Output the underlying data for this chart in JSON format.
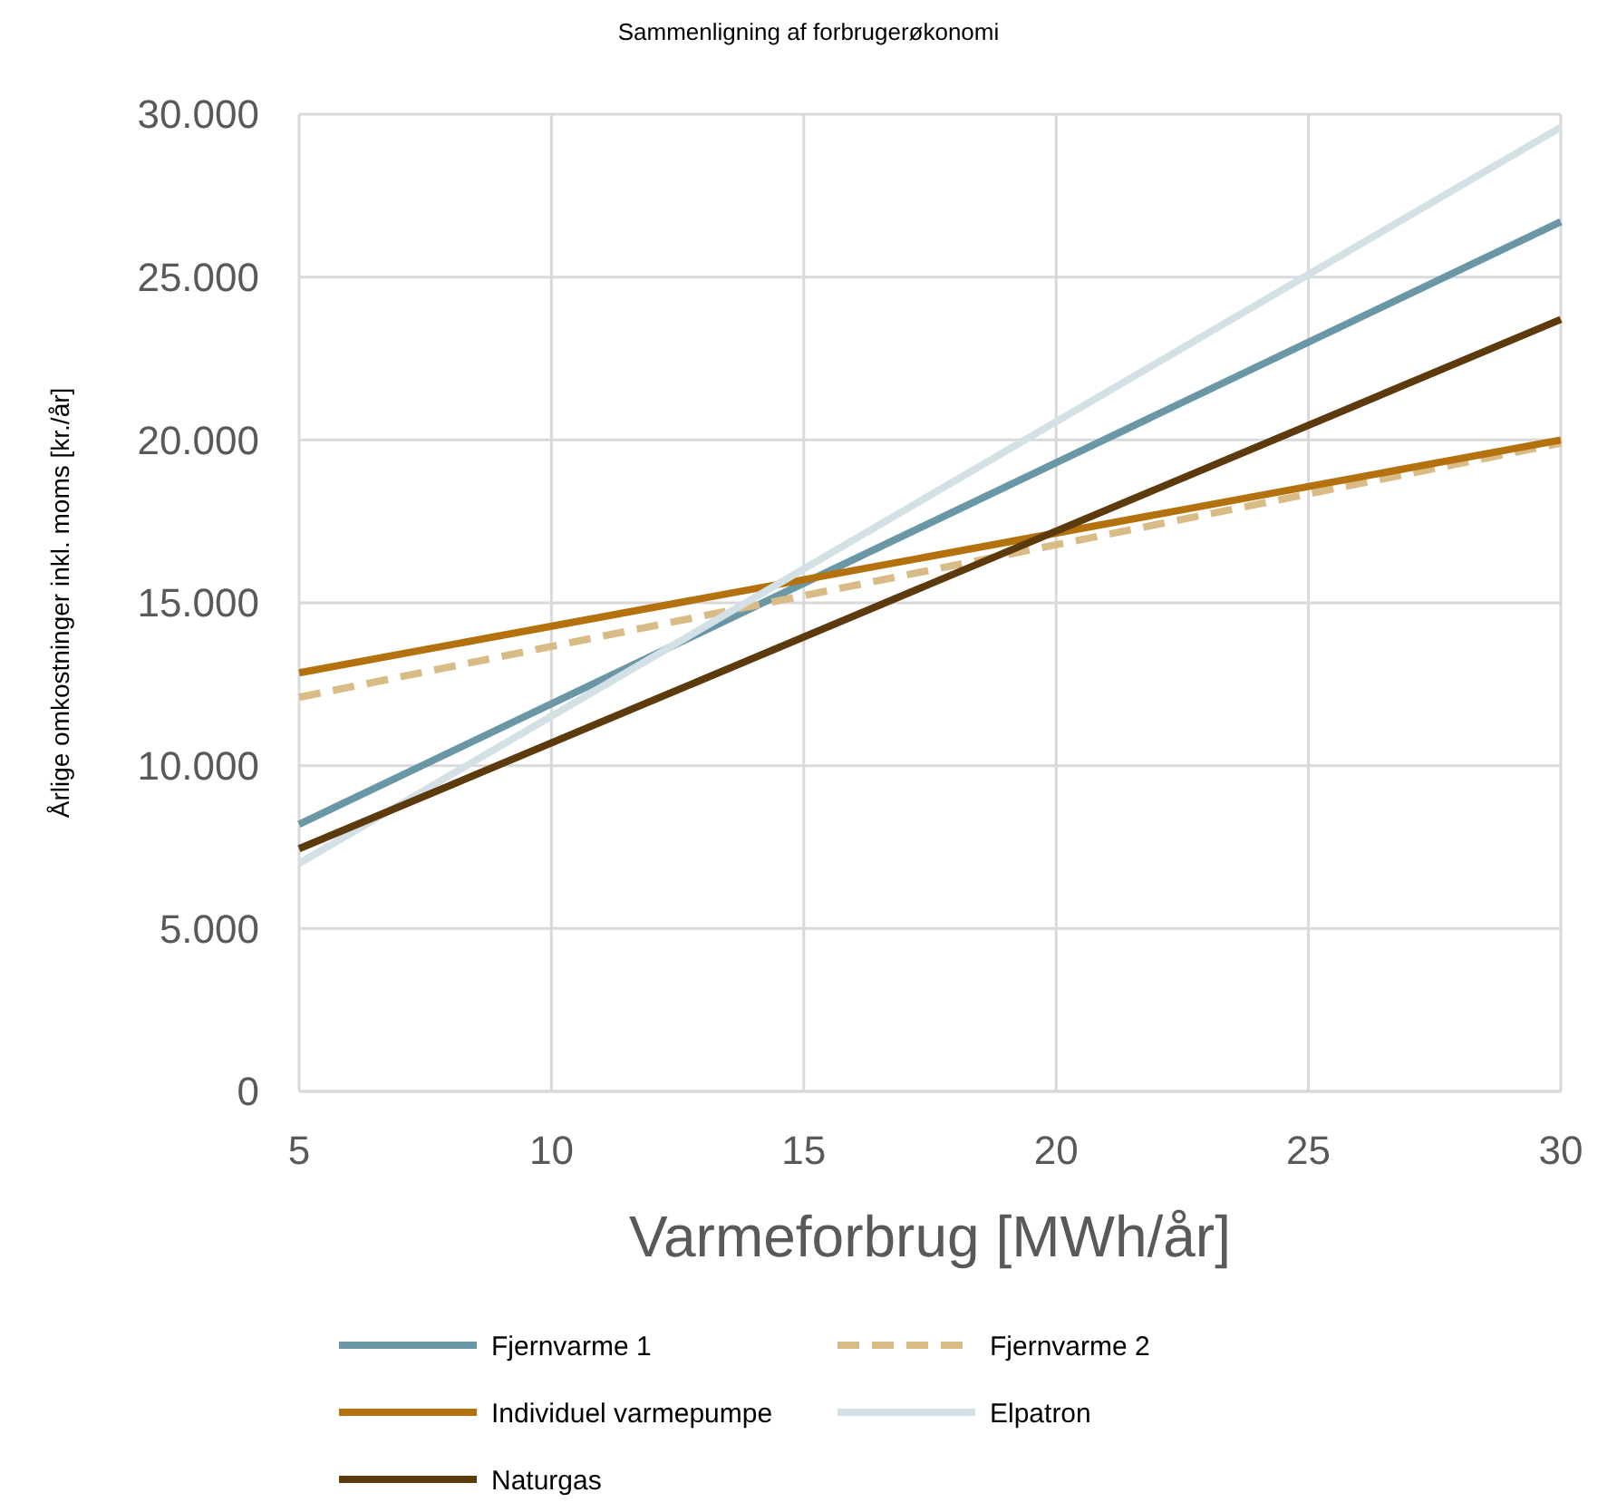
{
  "chart_data": {
    "type": "line",
    "title": "Sammenligning af forbrugerøkonomi",
    "xlabel": "Varmeforbrug [MWh/år]",
    "ylabel": "Årlige omkostninger inkl. moms [kr./år]",
    "x": [
      5,
      30
    ],
    "series": [
      {
        "name": "Fjernvarme 1",
        "color": "#6a97a6",
        "values": [
          8200,
          26700
        ]
      },
      {
        "name": "Fjernvarme 2",
        "color": "#d9bb85",
        "values": [
          12100,
          19900
        ],
        "line_style": "dashed"
      },
      {
        "name": "Individuel varmepumpe",
        "color": "#b3720e",
        "values": [
          12850,
          20000
        ]
      },
      {
        "name": "Elpatron",
        "color": "#d3e0e5",
        "values": [
          7000,
          29600
        ]
      },
      {
        "name": "Naturgas",
        "color": "#5c3a0c",
        "values": [
          7450,
          23700
        ]
      }
    ],
    "xlim": [
      5,
      30
    ],
    "xticks": [
      5,
      10,
      15,
      20,
      25,
      30
    ],
    "ylim": [
      0,
      30000
    ],
    "yticks": [
      0,
      {
        "value": 5000,
        "label": "5.000"
      },
      {
        "value": 10000,
        "label": "10.000"
      },
      {
        "value": 15000,
        "label": "15.000"
      },
      {
        "value": 20000,
        "label": "20.000"
      },
      {
        "value": 25000,
        "label": "25.000"
      },
      {
        "value": 30000,
        "label": "30.000"
      }
    ],
    "grid": true,
    "legend": "bottom",
    "line_style": "solid"
  }
}
